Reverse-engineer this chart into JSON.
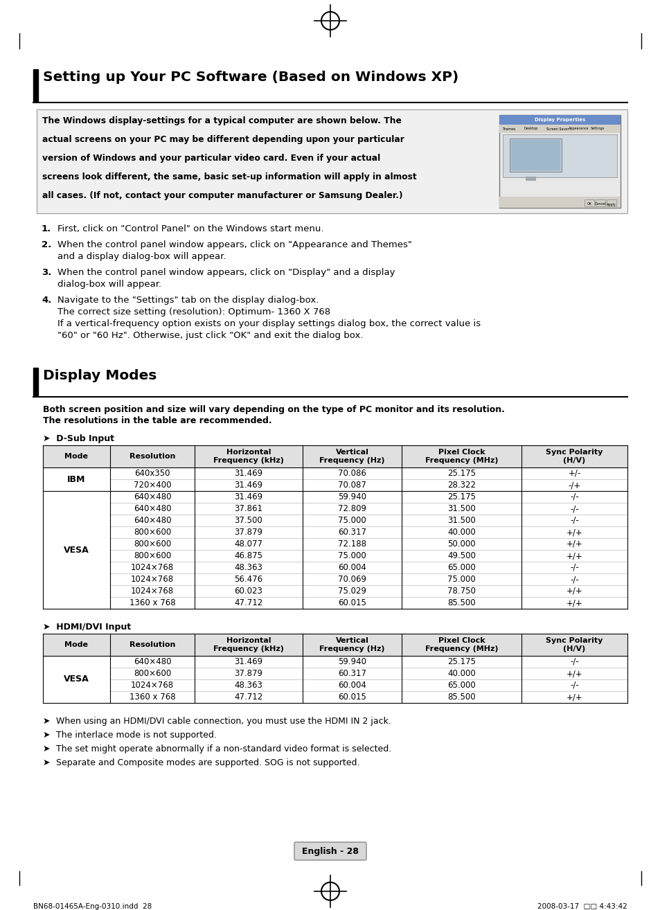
{
  "bg_color": "#ffffff",
  "section1_title": "Setting up Your PC Software (Based on Windows XP)",
  "section2_title": "Display Modes",
  "section2_intro_line1": "Both screen position and size will vary depending on the type of PC monitor and its resolution.",
  "section2_intro_line2": "The resolutions in the table are recommended.",
  "dsub_label": "➤  D-Sub Input",
  "hdmi_label": "➤  HDMI/DVI Input",
  "table_headers": [
    "Mode",
    "Resolution",
    "Horizontal\nFrequency (kHz)",
    "Vertical\nFrequency (Hz)",
    "Pixel Clock\nFrequency (MHz)",
    "Sync Polarity\n(H/V)"
  ],
  "dsub_rows": [
    [
      "IBM",
      "640x350",
      "31.469",
      "70.086",
      "25.175",
      "+/-"
    ],
    [
      "IBM",
      "720×400",
      "31.469",
      "70.087",
      "28.322",
      "-/+"
    ],
    [
      "VESA",
      "640×480",
      "31.469",
      "59.940",
      "25.175",
      "-/-"
    ],
    [
      "VESA",
      "640×480",
      "37.861",
      "72.809",
      "31.500",
      "-/-"
    ],
    [
      "VESA",
      "640×480",
      "37.500",
      "75.000",
      "31.500",
      "-/-"
    ],
    [
      "VESA",
      "800×600",
      "37.879",
      "60.317",
      "40.000",
      "+/+"
    ],
    [
      "VESA",
      "800×600",
      "48.077",
      "72.188",
      "50.000",
      "+/+"
    ],
    [
      "VESA",
      "800×600",
      "46.875",
      "75.000",
      "49.500",
      "+/+"
    ],
    [
      "VESA",
      "1024×768",
      "48.363",
      "60.004",
      "65.000",
      "-/-"
    ],
    [
      "VESA",
      "1024×768",
      "56.476",
      "70.069",
      "75.000",
      "-/-"
    ],
    [
      "VESA",
      "1024×768",
      "60.023",
      "75.029",
      "78.750",
      "+/+"
    ],
    [
      "VESA",
      "1360 x 768",
      "47.712",
      "60.015",
      "85.500",
      "+/+"
    ]
  ],
  "hdmi_rows": [
    [
      "VESA",
      "640×480",
      "31.469",
      "59.940",
      "25.175",
      "-/-"
    ],
    [
      "VESA",
      "800×600",
      "37.879",
      "60.317",
      "40.000",
      "+/+"
    ],
    [
      "VESA",
      "1024×768",
      "48.363",
      "60.004",
      "65.000",
      "-/-"
    ],
    [
      "VESA",
      "1360 x 768",
      "47.712",
      "60.015",
      "85.500",
      "+/+"
    ]
  ],
  "notes": [
    "When using an HDMI/DVI cable connection, you must use the HDMI IN 2 jack.",
    "The interlace mode is not supported.",
    "The set might operate abnormally if a non-standard video format is selected.",
    "Separate and Composite modes are supported. SOG is not supported."
  ],
  "footer_text": "English - 28",
  "footer_left": "BN68-01465A-Eng-0310.indd  28",
  "footer_right": "2008-03-17  □□ 4:43:42",
  "intro_bold_lines": [
    "The Windows display-settings for a typical computer are shown below. The",
    "actual screens on your PC may be different depending upon your particular",
    "version of Windows and your particular video card. Even if your actual",
    "screens look different, the same, basic set-up information will apply in almost",
    "all cases. (If not, contact your computer manufacturer or Samsung Dealer.)"
  ],
  "step1": "First, click on \"Control Panel\" on the Windows start menu.",
  "step2_line1": "When the control panel window appears, click on \"Appearance and Themes\"",
  "step2_line2": "and a display dialog-box will appear.",
  "step3_line1": "When the control panel window appears, click on \"Display\" and a display",
  "step3_line2": "dialog-box will appear.",
  "step4_line1": "Navigate to the \"Settings\" tab on the display dialog-box.",
  "step4_line2": "The correct size setting (resolution): Optimum- 1360 X 768",
  "step4_line3": "If a vertical-frequency option exists on your display settings dialog box, the correct value is",
  "step4_line4": "\"60\" or \"60 Hz\". Otherwise, just click \"OK\" and exit the dialog box."
}
